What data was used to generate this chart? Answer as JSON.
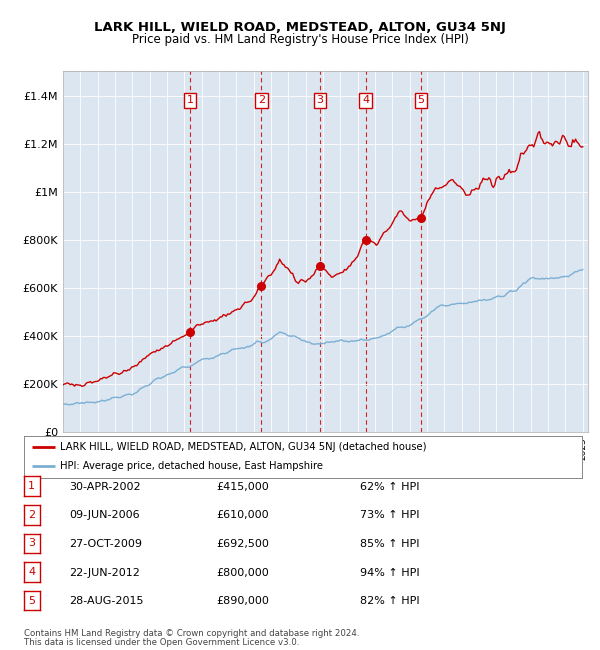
{
  "title": "LARK HILL, WIELD ROAD, MEDSTEAD, ALTON, GU34 5NJ",
  "subtitle": "Price paid vs. HM Land Registry's House Price Index (HPI)",
  "legend_line1": "LARK HILL, WIELD ROAD, MEDSTEAD, ALTON, GU34 5NJ (detached house)",
  "legend_line2": "HPI: Average price, detached house, East Hampshire",
  "footer1": "Contains HM Land Registry data © Crown copyright and database right 2024.",
  "footer2": "This data is licensed under the Open Government Licence v3.0.",
  "transactions": [
    {
      "num": 1,
      "date": "30-APR-2002",
      "price": "£415,000",
      "pct": "62% ↑ HPI",
      "year": 2002.33
    },
    {
      "num": 2,
      "date": "09-JUN-2006",
      "price": "£610,000",
      "pct": "73% ↑ HPI",
      "year": 2006.44
    },
    {
      "num": 3,
      "date": "27-OCT-2009",
      "price": "£692,500",
      "pct": "85% ↑ HPI",
      "year": 2009.82
    },
    {
      "num": 4,
      "date": "22-JUN-2012",
      "price": "£800,000",
      "pct": "94% ↑ HPI",
      "year": 2012.47
    },
    {
      "num": 5,
      "date": "28-AUG-2015",
      "price": "£890,000",
      "pct": "82% ↑ HPI",
      "year": 2015.66
    }
  ],
  "transaction_values": [
    415000,
    610000,
    692500,
    800000,
    890000
  ],
  "hpi_color": "#7bafd4",
  "price_color": "#cc0000",
  "background_color": "#dce6f1",
  "ylim": [
    0,
    1500000
  ],
  "yticks": [
    0,
    200000,
    400000,
    600000,
    800000,
    1000000,
    1200000,
    1400000
  ],
  "ytick_labels": [
    "£0",
    "£200K",
    "£400K",
    "£600K",
    "£800K",
    "£1M",
    "£1.2M",
    "£1.4M"
  ]
}
